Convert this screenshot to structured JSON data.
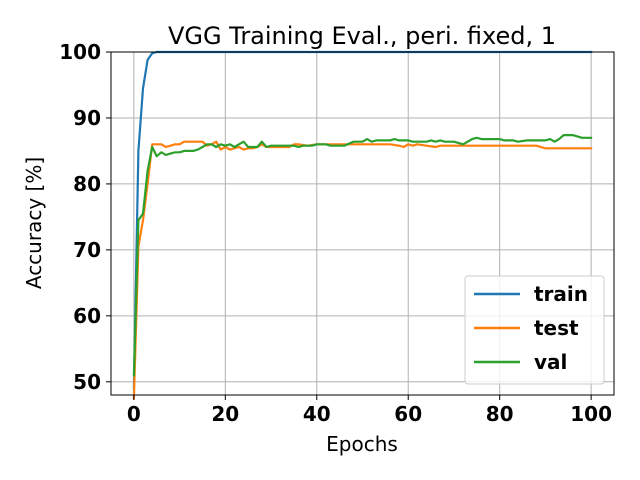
{
  "chart_data": {
    "type": "line",
    "title": "VGG Training Eval., peri. fixed, 1",
    "xlabel": "Epochs",
    "ylabel": "Accuracy [%]",
    "xlim": [
      -5,
      105
    ],
    "ylim": [
      48,
      100
    ],
    "xticks": [
      0,
      20,
      40,
      60,
      80,
      100
    ],
    "yticks": [
      50,
      60,
      70,
      80,
      90,
      100
    ],
    "grid": true,
    "legend_position": "lower right",
    "series": [
      {
        "name": "train",
        "color": "#1f77b4",
        "x": [
          0,
          1,
          2,
          3,
          4,
          5,
          10,
          20,
          40,
          60,
          80,
          100
        ],
        "y": [
          49.0,
          85.0,
          94.5,
          98.8,
          99.8,
          100.0,
          100.0,
          100.0,
          100.0,
          100.0,
          100.0,
          100.0
        ]
      },
      {
        "name": "test",
        "color": "#ff7f0e",
        "x": [
          0,
          1,
          2,
          3,
          4,
          5,
          6,
          7,
          8,
          9,
          10,
          11,
          12,
          13,
          14,
          15,
          16,
          17,
          18,
          19,
          20,
          21,
          22,
          23,
          24,
          25,
          26,
          27,
          28,
          29,
          30,
          32,
          34,
          35,
          36,
          38,
          40,
          42,
          44,
          46,
          48,
          50,
          52,
          54,
          56,
          58,
          59,
          60,
          61,
          62,
          64,
          66,
          67,
          68,
          70,
          72,
          74,
          76,
          78,
          80,
          82,
          84,
          86,
          88,
          89,
          90,
          92,
          94,
          96,
          98,
          100
        ],
        "y": [
          47.5,
          70.5,
          74.5,
          80.0,
          86.0,
          86.0,
          86.0,
          85.6,
          85.8,
          86.0,
          86.0,
          86.4,
          86.4,
          86.4,
          86.4,
          86.4,
          85.8,
          86.0,
          86.4,
          85.2,
          85.6,
          85.2,
          85.4,
          85.6,
          85.2,
          85.4,
          85.4,
          85.6,
          86.0,
          85.6,
          85.6,
          85.6,
          85.6,
          86.0,
          86.0,
          85.8,
          86.0,
          86.0,
          86.0,
          86.0,
          86.0,
          86.0,
          86.0,
          86.0,
          86.0,
          85.8,
          85.6,
          86.0,
          85.8,
          86.0,
          85.8,
          85.6,
          85.8,
          85.8,
          85.8,
          85.8,
          85.8,
          85.8,
          85.8,
          85.8,
          85.8,
          85.8,
          85.8,
          85.8,
          85.6,
          85.4,
          85.4,
          85.4,
          85.4,
          85.4,
          85.4
        ]
      },
      {
        "name": "val",
        "color": "#2ca02c",
        "x": [
          0,
          1,
          2,
          3,
          4,
          5,
          6,
          7,
          8,
          9,
          10,
          11,
          12,
          13,
          14,
          15,
          16,
          17,
          18,
          19,
          20,
          21,
          22,
          23,
          24,
          25,
          26,
          27,
          28,
          29,
          30,
          32,
          34,
          35,
          36,
          37,
          38,
          39,
          40,
          42,
          43,
          44,
          46,
          48,
          49,
          50,
          51,
          52,
          53,
          54,
          56,
          57,
          58,
          60,
          61,
          62,
          64,
          65,
          66,
          67,
          68,
          70,
          72,
          73,
          74,
          75,
          76,
          78,
          80,
          81,
          82,
          83,
          84,
          86,
          88,
          89,
          90,
          91,
          92,
          93,
          94,
          95,
          96,
          98,
          100
        ],
        "y": [
          51.0,
          74.5,
          75.5,
          82.0,
          85.6,
          84.2,
          84.8,
          84.4,
          84.6,
          84.8,
          84.8,
          85.0,
          85.0,
          85.0,
          85.2,
          85.6,
          86.0,
          86.0,
          85.6,
          86.0,
          85.8,
          86.0,
          85.6,
          86.0,
          86.4,
          85.6,
          85.6,
          85.6,
          86.4,
          85.6,
          85.8,
          85.8,
          85.8,
          85.8,
          85.6,
          85.8,
          85.8,
          85.8,
          86.0,
          86.0,
          85.8,
          85.8,
          85.8,
          86.4,
          86.4,
          86.4,
          86.8,
          86.4,
          86.6,
          86.6,
          86.6,
          86.8,
          86.6,
          86.6,
          86.4,
          86.4,
          86.4,
          86.6,
          86.4,
          86.6,
          86.4,
          86.4,
          86.0,
          86.4,
          86.8,
          87.0,
          86.8,
          86.8,
          86.8,
          86.6,
          86.6,
          86.6,
          86.4,
          86.6,
          86.6,
          86.6,
          86.6,
          86.8,
          86.4,
          86.8,
          87.4,
          87.4,
          87.4,
          87.0,
          87.0
        ]
      }
    ]
  }
}
